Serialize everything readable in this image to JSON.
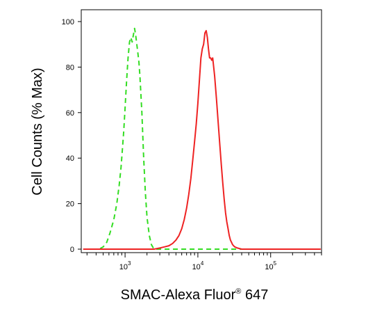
{
  "chart_data": {
    "type": "line",
    "title": "",
    "xlabel": "SMAC-Alexa Fluor",
    "xlabel_superscript": "®",
    "xlabel_suffix": " 647",
    "ylabel": "Cell Counts (% Max)",
    "x_scale": "log",
    "xlim": [
      250,
      500000
    ],
    "ylim": [
      0,
      100
    ],
    "x_ticks": [
      {
        "value": 1000,
        "base": "10",
        "exp": "3"
      },
      {
        "value": 10000,
        "base": "10",
        "exp": "4"
      },
      {
        "value": 100000,
        "base": "10",
        "exp": "5"
      }
    ],
    "y_ticks": [
      {
        "value": 0,
        "label": "0"
      },
      {
        "value": 20,
        "label": "20"
      },
      {
        "value": 40,
        "label": "40"
      },
      {
        "value": 60,
        "label": "60"
      },
      {
        "value": 80,
        "label": "80"
      },
      {
        "value": 100,
        "label": "100"
      }
    ],
    "grid": false,
    "series": [
      {
        "color": "#33dd22",
        "style": "dashed",
        "x": [
          270,
          380,
          440,
          500,
          560,
          620,
          700,
          770,
          830,
          880,
          920,
          960,
          1000,
          1050,
          1100,
          1150,
          1200,
          1250,
          1300,
          1350,
          1400,
          1450,
          1500,
          1550,
          1600,
          1650,
          1700,
          1750,
          1800,
          1900,
          2000,
          2150,
          2300,
          2500,
          3000,
          6000,
          20000,
          60000,
          200000,
          480000
        ],
        "y": [
          0,
          0,
          0,
          1,
          3,
          7,
          13,
          20,
          28,
          36,
          44,
          52,
          62,
          74,
          84,
          91,
          93,
          91,
          94,
          97,
          94,
          90,
          86,
          82,
          76,
          68,
          60,
          50,
          40,
          25,
          14,
          6,
          2,
          0,
          0,
          0,
          0,
          0,
          0,
          0
        ]
      },
      {
        "color": "#ee2222",
        "style": "solid",
        "x": [
          270,
          1500,
          2500,
          3000,
          3500,
          4000,
          4500,
          5000,
          5500,
          6000,
          6500,
          7000,
          7500,
          8000,
          8500,
          9000,
          9500,
          10000,
          10500,
          11000,
          11500,
          12000,
          12500,
          13000,
          13500,
          14000,
          14500,
          15000,
          15500,
          16000,
          16500,
          17000,
          18000,
          19000,
          20000,
          21000,
          22000,
          23000,
          24000,
          25000,
          26000,
          27000,
          28000,
          29000,
          30000,
          32000,
          35000,
          40000,
          50000,
          100000,
          480000
        ],
        "y": [
          0,
          0,
          0,
          0.5,
          1,
          1.5,
          2.5,
          4,
          6,
          9,
          13,
          18,
          24,
          31,
          39,
          47,
          55,
          64,
          74,
          84,
          88,
          90,
          95,
          96,
          93,
          88,
          84,
          84,
          83,
          84,
          80,
          76,
          66,
          56,
          46,
          37,
          29,
          22,
          16,
          12,
          9,
          6,
          4,
          3,
          2,
          1,
          0.5,
          0,
          0,
          0,
          0
        ]
      }
    ]
  }
}
